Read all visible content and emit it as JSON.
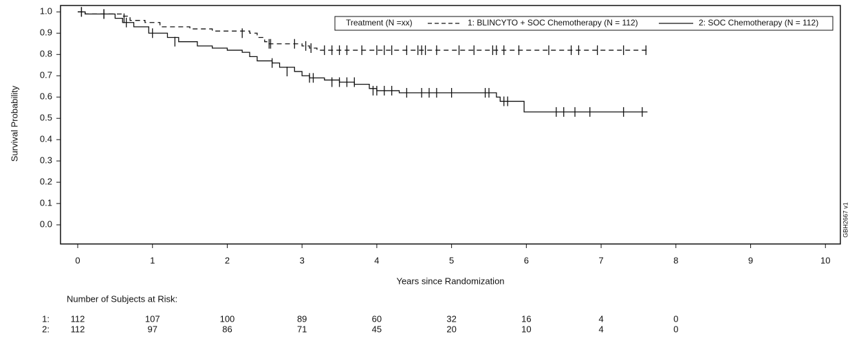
{
  "chart_data": {
    "type": "kaplan-meier",
    "y_label": "Survival Probability",
    "x_label": "Years since Randomization",
    "legend_title": "Treatment (N =xx)",
    "side_note": "GBH2667 v1",
    "xlim": [
      -0.23,
      10.2
    ],
    "ylim": [
      -0.09,
      1.03
    ],
    "xticks": [
      0,
      1,
      2,
      3,
      4,
      5,
      6,
      7,
      8,
      9,
      10
    ],
    "yticks": [
      {
        "value": 1,
        "label": "1.0"
      },
      0.9,
      0.8,
      0.7,
      0.6,
      0.5,
      0.4,
      0.3,
      0.2,
      0.1,
      {
        "value": 0,
        "label": "0.0"
      }
    ],
    "series": [
      {
        "name": "1: BLINCYTO + SOC Chemotherapy (N = 112)",
        "color": "#111111",
        "dashed": true,
        "x": [
          0,
          0.1,
          0.6,
          0.7,
          0.9,
          1.1,
          1.5,
          1.8,
          2.3,
          2.4,
          2.5,
          2.55,
          3.0,
          3.1,
          3.2,
          7.62
        ],
        "values": [
          1.0,
          0.99,
          0.98,
          0.96,
          0.95,
          0.93,
          0.92,
          0.91,
          0.9,
          0.88,
          0.86,
          0.85,
          0.84,
          0.83,
          0.82,
          0.82
        ],
        "censor_x": [
          0.05,
          0.35,
          0.62,
          2.2,
          2.56,
          2.58,
          2.9,
          3.05,
          3.12,
          3.3,
          3.4,
          3.5,
          3.6,
          3.8,
          4.0,
          4.1,
          4.2,
          4.4,
          4.55,
          4.6,
          4.65,
          4.8,
          5.1,
          5.3,
          5.55,
          5.6,
          5.7,
          5.9,
          6.3,
          6.6,
          6.7,
          6.95,
          7.3,
          7.6
        ],
        "censor_values": [
          1.0,
          0.99,
          0.97,
          0.9,
          0.85,
          0.85,
          0.85,
          0.84,
          0.83,
          0.82,
          0.82,
          0.82,
          0.82,
          0.82,
          0.82,
          0.82,
          0.82,
          0.82,
          0.82,
          0.82,
          0.82,
          0.82,
          0.82,
          0.82,
          0.82,
          0.82,
          0.82,
          0.82,
          0.82,
          0.82,
          0.82,
          0.82,
          0.82,
          0.82
        ]
      },
      {
        "name": "2: SOC Chemotherapy (N = 112)",
        "color": "#111111",
        "dashed": false,
        "x": [
          0,
          0.1,
          0.5,
          0.6,
          0.75,
          0.95,
          1.2,
          1.35,
          1.6,
          1.8,
          2.0,
          2.2,
          2.3,
          2.4,
          2.6,
          2.7,
          2.9,
          3.0,
          3.1,
          3.3,
          3.5,
          3.7,
          3.9,
          4.0,
          4.3,
          5.6,
          5.65,
          5.97,
          7.62
        ],
        "values": [
          1.0,
          0.99,
          0.97,
          0.95,
          0.93,
          0.9,
          0.88,
          0.86,
          0.84,
          0.83,
          0.82,
          0.81,
          0.79,
          0.77,
          0.76,
          0.74,
          0.72,
          0.7,
          0.69,
          0.68,
          0.67,
          0.66,
          0.64,
          0.63,
          0.62,
          0.6,
          0.58,
          0.53,
          0.53
        ],
        "censor_x": [
          0.05,
          0.35,
          0.65,
          1.0,
          1.3,
          2.6,
          2.8,
          3.1,
          3.15,
          3.4,
          3.5,
          3.6,
          3.7,
          3.95,
          4.0,
          4.1,
          4.2,
          4.4,
          4.6,
          4.7,
          4.8,
          5.0,
          5.45,
          5.5,
          5.7,
          5.75,
          6.4,
          6.5,
          6.65,
          6.85,
          7.3,
          7.55
        ],
        "censor_values": [
          1.0,
          0.99,
          0.95,
          0.9,
          0.86,
          0.76,
          0.72,
          0.69,
          0.69,
          0.67,
          0.67,
          0.67,
          0.67,
          0.63,
          0.63,
          0.63,
          0.63,
          0.62,
          0.62,
          0.62,
          0.62,
          0.62,
          0.62,
          0.62,
          0.58,
          0.58,
          0.53,
          0.53,
          0.53,
          0.53,
          0.53,
          0.53
        ]
      }
    ],
    "risk_table": {
      "title": "Number of Subjects at Risk:",
      "rows": [
        {
          "label": "1:",
          "values": [
            112,
            107,
            100,
            89,
            60,
            32,
            16,
            4,
            0
          ]
        },
        {
          "label": "2:",
          "values": [
            112,
            97,
            86,
            71,
            45,
            20,
            10,
            4,
            0
          ]
        }
      ]
    }
  }
}
